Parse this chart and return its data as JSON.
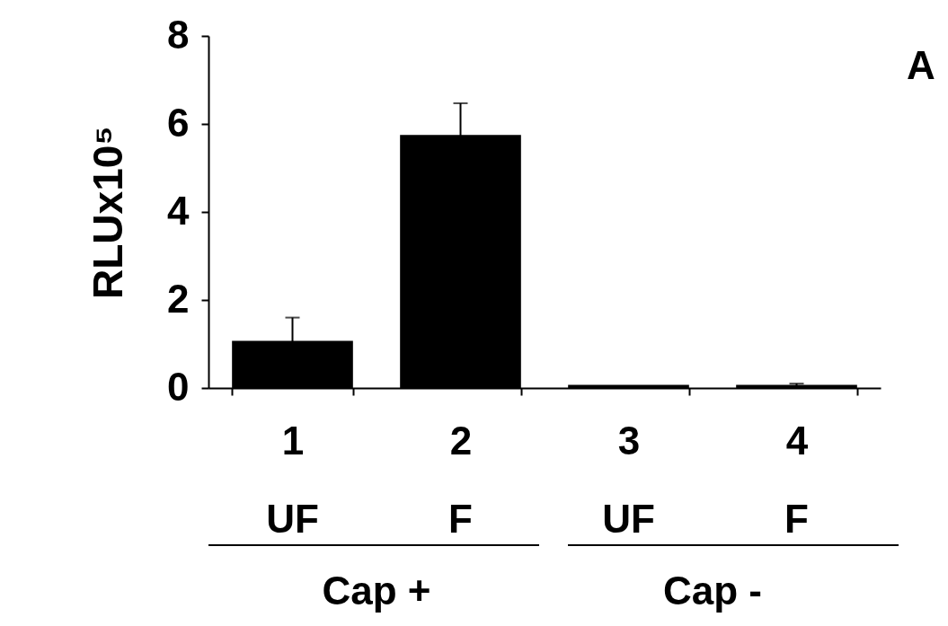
{
  "chart_data": {
    "type": "bar",
    "ylabel": "RLUx10⁵",
    "categories": [
      "1",
      "2",
      "3",
      "4"
    ],
    "values": [
      1.07,
      5.75,
      0.07,
      0.07
    ],
    "errors": [
      0.53,
      0.72,
      null,
      0.03
    ],
    "color": "#000000",
    "ylim": [
      0,
      8
    ],
    "yticks": [
      0,
      2,
      4,
      6,
      8
    ],
    "grid": false,
    "annotations": [
      "UF",
      "F",
      "UF",
      "F",
      "Cap +",
      "Cap -",
      "A"
    ]
  }
}
